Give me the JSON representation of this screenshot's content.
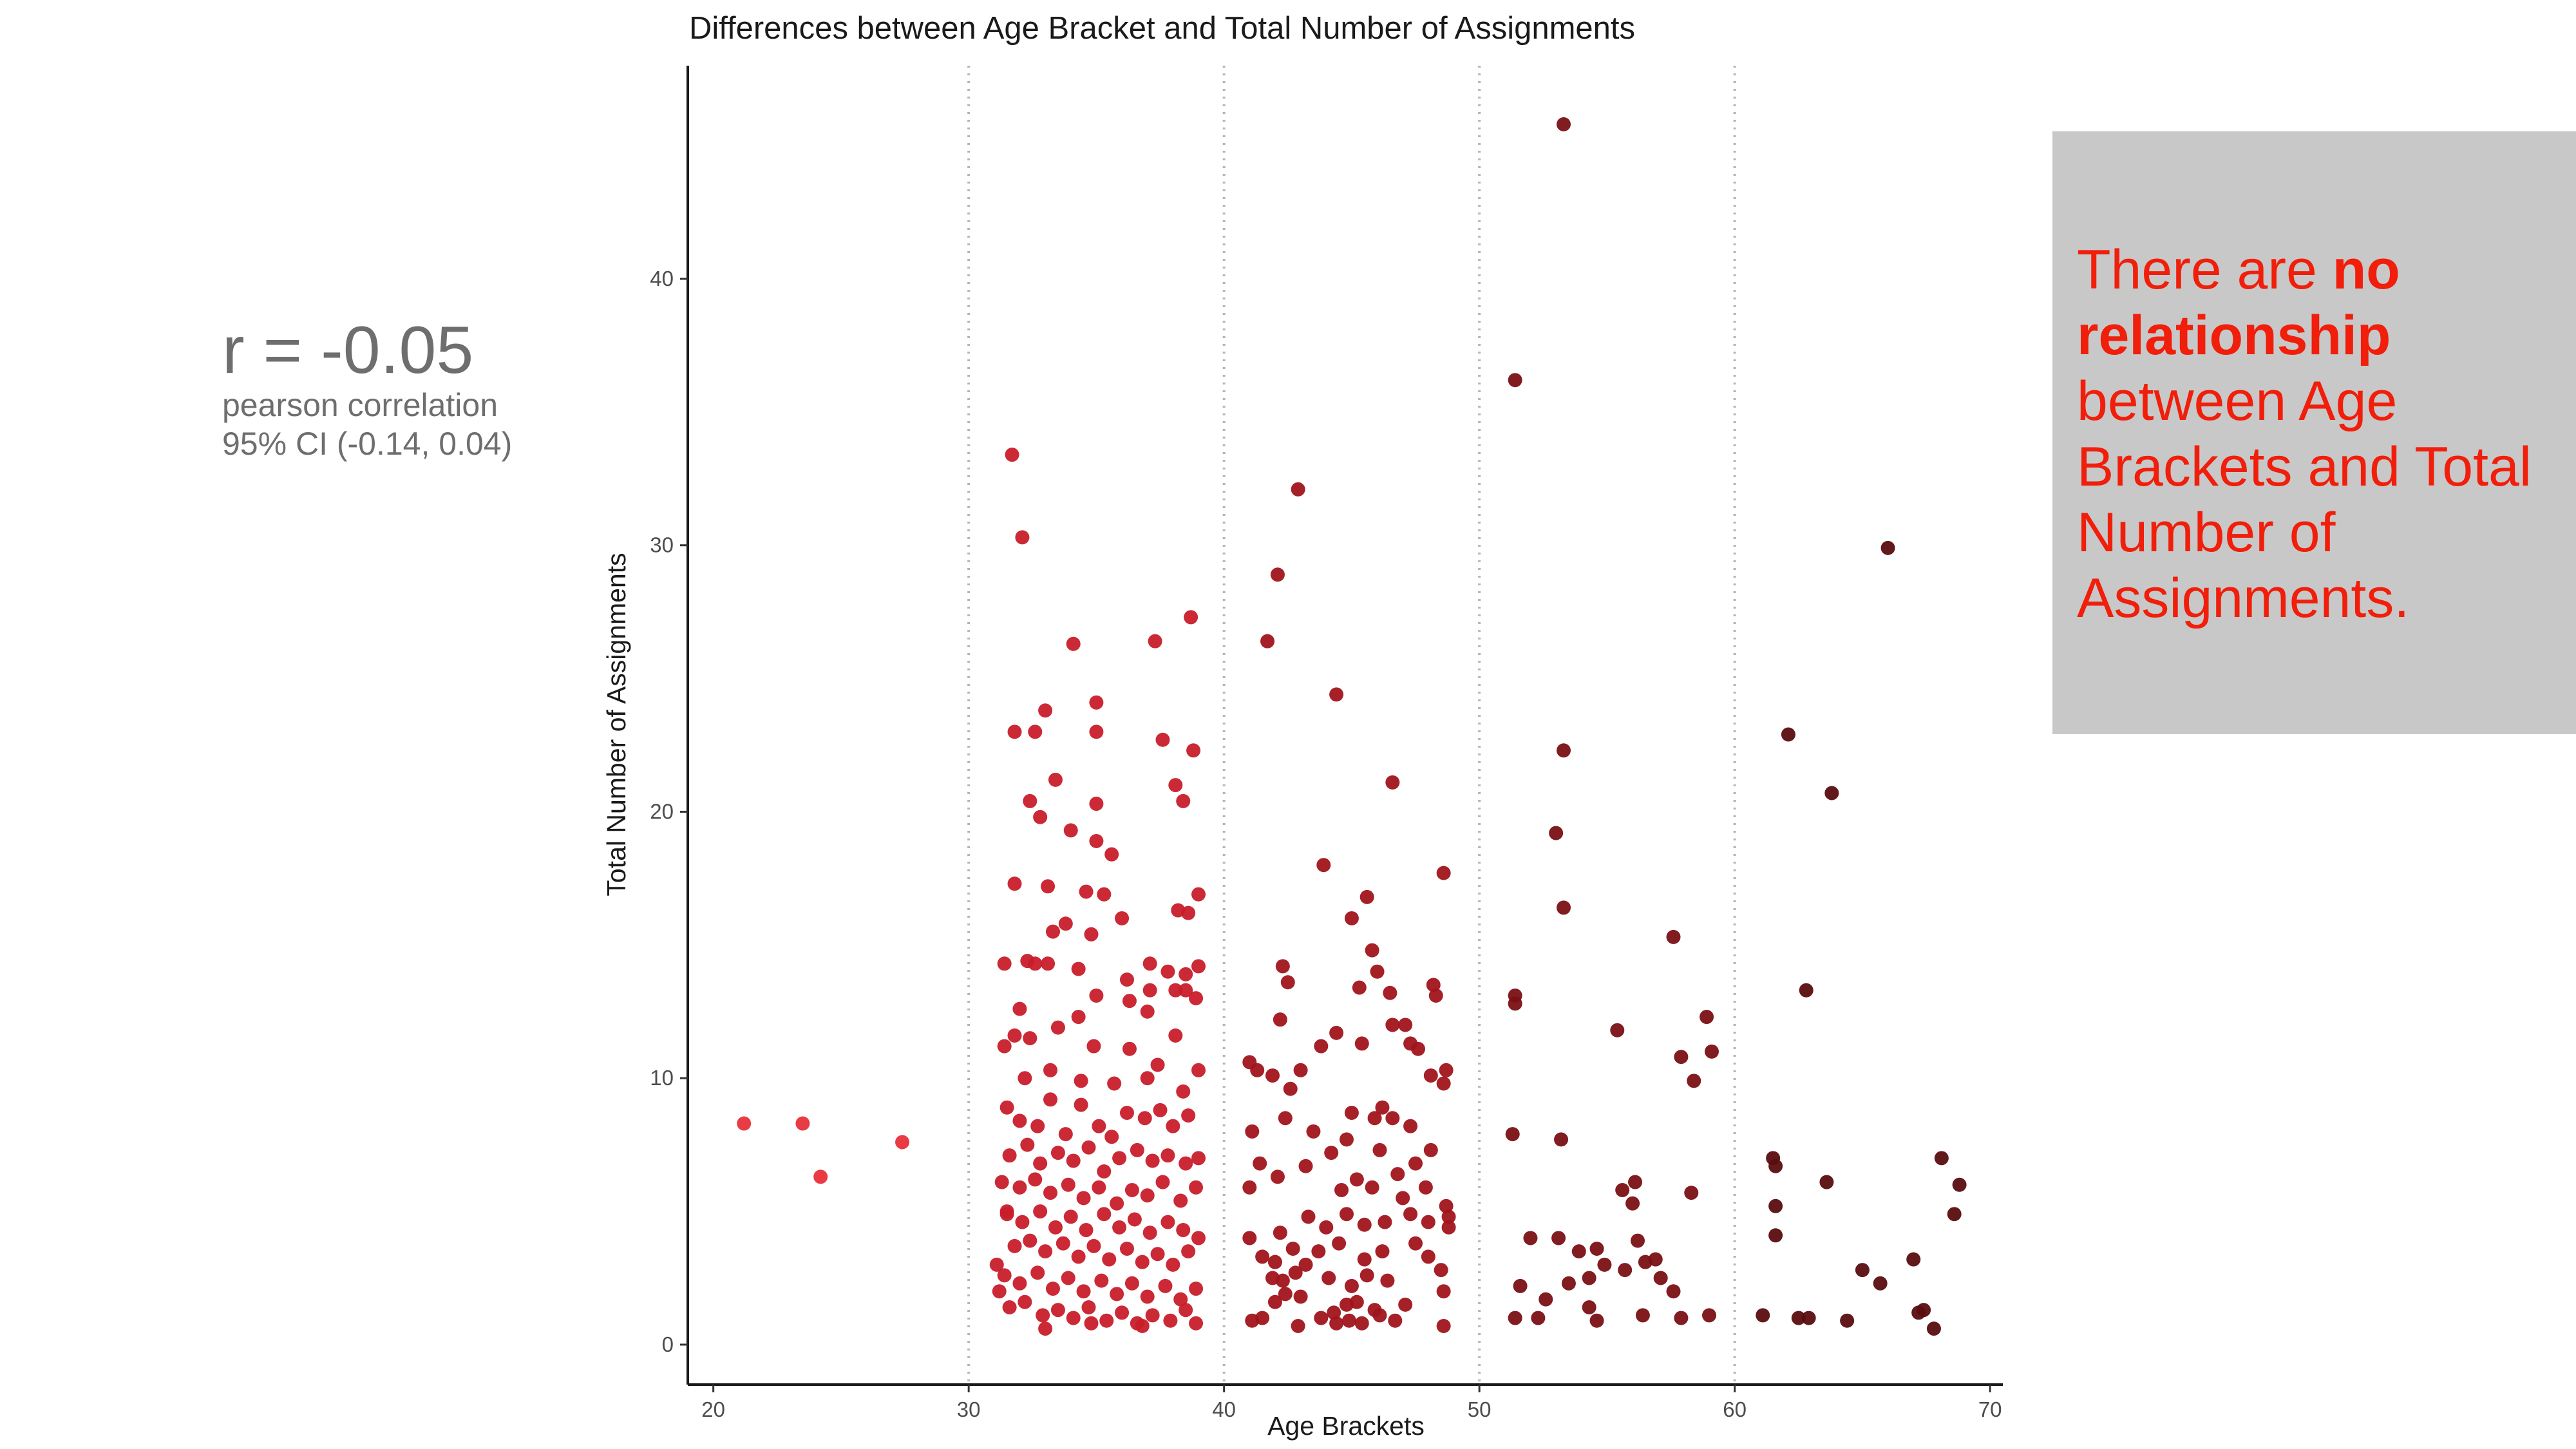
{
  "stats": {
    "r_text": "r = -0.05",
    "method": "pearson correlation",
    "ci": "95% CI (-0.14, 0.04)"
  },
  "note": {
    "part1": "There are ",
    "bold1": "no",
    "bold2": "relationship",
    "rest": "between Age Brackets and Total Number of Assignments."
  },
  "colors": {
    "young": "#e8303a",
    "30s": "#c81e2a",
    "40s": "#a1141c",
    "50s": "#7a1014",
    "60s": "#5a0d0f",
    "note_text": "#f01e0a",
    "note_bg": "#c8c8c8"
  },
  "chart_data": {
    "type": "scatter",
    "title": "Differences between Age Bracket and Total Number of Assignments",
    "xlabel": "Age Brackets",
    "ylabel": "Total Number of Assignments",
    "xlim": [
      19,
      70.5
    ],
    "ylim": [
      -1.5,
      48
    ],
    "xticks": [
      20,
      30,
      40,
      50,
      60,
      70
    ],
    "yticks": [
      0,
      10,
      20,
      30,
      40
    ],
    "bracket_lines": [
      30,
      40,
      50,
      60
    ],
    "grid": false,
    "points": [
      [
        21.2,
        8.3
      ],
      [
        23.5,
        8.3
      ],
      [
        24.2,
        6.3
      ],
      [
        27.4,
        7.6
      ],
      [
        31.7,
        33.4
      ],
      [
        32.1,
        30.3
      ],
      [
        31.8,
        23.0
      ],
      [
        32.6,
        23.0
      ],
      [
        33.0,
        23.8
      ],
      [
        34.1,
        26.3
      ],
      [
        33.4,
        21.2
      ],
      [
        32.4,
        20.4
      ],
      [
        32.8,
        19.8
      ],
      [
        35.0,
        24.1
      ],
      [
        35.0,
        23.0
      ],
      [
        35.0,
        20.3
      ],
      [
        35.0,
        18.9
      ],
      [
        35.6,
        18.4
      ],
      [
        34.0,
        19.3
      ],
      [
        31.8,
        17.3
      ],
      [
        33.1,
        17.2
      ],
      [
        34.6,
        17.0
      ],
      [
        35.3,
        16.9
      ],
      [
        33.8,
        15.8
      ],
      [
        34.8,
        15.4
      ],
      [
        33.3,
        15.5
      ],
      [
        36.0,
        16.0
      ],
      [
        31.4,
        14.3
      ],
      [
        32.3,
        14.4
      ],
      [
        32.6,
        14.3
      ],
      [
        33.1,
        14.3
      ],
      [
        34.3,
        14.1
      ],
      [
        37.3,
        26.4
      ],
      [
        38.7,
        27.3
      ],
      [
        37.6,
        22.7
      ],
      [
        38.8,
        22.3
      ],
      [
        38.1,
        21.0
      ],
      [
        38.4,
        20.4
      ],
      [
        36.2,
        13.7
      ],
      [
        36.3,
        12.9
      ],
      [
        37.1,
        14.3
      ],
      [
        37.8,
        14.0
      ],
      [
        38.5,
        13.9
      ],
      [
        39.0,
        16.9
      ],
      [
        38.2,
        16.3
      ],
      [
        38.6,
        16.2
      ],
      [
        39.0,
        14.2
      ],
      [
        37.1,
        13.3
      ],
      [
        38.1,
        13.3
      ],
      [
        38.5,
        13.3
      ],
      [
        38.9,
        13.0
      ],
      [
        32.0,
        12.6
      ],
      [
        31.8,
        11.6
      ],
      [
        32.4,
        11.5
      ],
      [
        33.5,
        11.9
      ],
      [
        35.0,
        13.1
      ],
      [
        34.3,
        12.3
      ],
      [
        34.9,
        11.2
      ],
      [
        36.3,
        11.1
      ],
      [
        37.0,
        12.5
      ],
      [
        37.4,
        10.5
      ],
      [
        38.1,
        11.6
      ],
      [
        39.0,
        10.3
      ],
      [
        31.4,
        11.2
      ],
      [
        32.2,
        10.0
      ],
      [
        33.2,
        10.3
      ],
      [
        34.4,
        9.9
      ],
      [
        35.7,
        9.8
      ],
      [
        37.0,
        10.0
      ],
      [
        38.4,
        9.5
      ],
      [
        31.5,
        8.9
      ],
      [
        32.0,
        8.4
      ],
      [
        32.7,
        8.2
      ],
      [
        33.2,
        9.2
      ],
      [
        33.8,
        7.9
      ],
      [
        34.4,
        9.0
      ],
      [
        35.1,
        8.2
      ],
      [
        35.6,
        7.8
      ],
      [
        36.2,
        8.7
      ],
      [
        36.9,
        8.5
      ],
      [
        37.5,
        8.8
      ],
      [
        38.0,
        8.2
      ],
      [
        38.6,
        8.6
      ],
      [
        31.6,
        7.1
      ],
      [
        32.3,
        7.5
      ],
      [
        32.8,
        6.8
      ],
      [
        33.5,
        7.2
      ],
      [
        34.1,
        6.9
      ],
      [
        34.7,
        7.4
      ],
      [
        35.3,
        6.5
      ],
      [
        35.9,
        7.0
      ],
      [
        36.6,
        7.3
      ],
      [
        37.2,
        6.9
      ],
      [
        37.8,
        7.1
      ],
      [
        38.5,
        6.8
      ],
      [
        31.3,
        6.1
      ],
      [
        32.0,
        5.9
      ],
      [
        32.6,
        6.2
      ],
      [
        33.2,
        5.7
      ],
      [
        33.9,
        6.0
      ],
      [
        34.5,
        5.5
      ],
      [
        35.1,
        5.9
      ],
      [
        35.8,
        5.3
      ],
      [
        36.4,
        5.8
      ],
      [
        37.0,
        5.6
      ],
      [
        37.6,
        6.1
      ],
      [
        38.3,
        5.4
      ],
      [
        38.9,
        5.9
      ],
      [
        31.5,
        4.9
      ],
      [
        32.1,
        4.6
      ],
      [
        32.8,
        5.0
      ],
      [
        33.4,
        4.4
      ],
      [
        34.0,
        4.8
      ],
      [
        34.6,
        4.3
      ],
      [
        35.3,
        4.9
      ],
      [
        35.9,
        4.4
      ],
      [
        36.5,
        4.7
      ],
      [
        37.1,
        4.2
      ],
      [
        37.8,
        4.6
      ],
      [
        38.4,
        4.3
      ],
      [
        31.8,
        3.7
      ],
      [
        32.4,
        3.9
      ],
      [
        33.0,
        3.5
      ],
      [
        33.7,
        3.8
      ],
      [
        34.3,
        3.3
      ],
      [
        34.9,
        3.7
      ],
      [
        35.5,
        3.2
      ],
      [
        36.2,
        3.6
      ],
      [
        36.8,
        3.1
      ],
      [
        37.4,
        3.4
      ],
      [
        38.0,
        3.0
      ],
      [
        38.6,
        3.5
      ],
      [
        31.4,
        2.6
      ],
      [
        32.0,
        2.3
      ],
      [
        32.7,
        2.7
      ],
      [
        33.3,
        2.1
      ],
      [
        33.9,
        2.5
      ],
      [
        34.5,
        2.0
      ],
      [
        35.2,
        2.4
      ],
      [
        35.8,
        1.9
      ],
      [
        36.4,
        2.3
      ],
      [
        37.0,
        1.8
      ],
      [
        37.7,
        2.2
      ],
      [
        38.3,
        1.7
      ],
      [
        38.9,
        2.1
      ],
      [
        31.6,
        1.4
      ],
      [
        32.2,
        1.6
      ],
      [
        32.9,
        1.1
      ],
      [
        33.5,
        1.3
      ],
      [
        34.1,
        1.0
      ],
      [
        34.7,
        1.4
      ],
      [
        35.4,
        0.9
      ],
      [
        36.0,
        1.2
      ],
      [
        36.6,
        0.8
      ],
      [
        37.2,
        1.1
      ],
      [
        37.9,
        0.9
      ],
      [
        38.5,
        1.3
      ],
      [
        33.0,
        0.6
      ],
      [
        34.8,
        0.8
      ],
      [
        36.8,
        0.7
      ],
      [
        38.9,
        0.8
      ],
      [
        31.2,
        2.0
      ],
      [
        31.5,
        5.0
      ],
      [
        39.0,
        4.0
      ],
      [
        39.0,
        7.0
      ],
      [
        31.1,
        3.0
      ],
      [
        42.9,
        32.1
      ],
      [
        42.1,
        28.9
      ],
      [
        41.7,
        26.4
      ],
      [
        44.4,
        24.4
      ],
      [
        46.6,
        21.1
      ],
      [
        43.9,
        18.0
      ],
      [
        48.6,
        17.7
      ],
      [
        45.0,
        16.0
      ],
      [
        45.6,
        16.8
      ],
      [
        45.8,
        14.8
      ],
      [
        42.3,
        14.2
      ],
      [
        42.5,
        13.6
      ],
      [
        46.0,
        14.0
      ],
      [
        45.3,
        13.4
      ],
      [
        46.5,
        13.2
      ],
      [
        48.2,
        13.5
      ],
      [
        48.3,
        13.1
      ],
      [
        42.2,
        12.2
      ],
      [
        43.8,
        11.2
      ],
      [
        44.4,
        11.7
      ],
      [
        45.4,
        11.3
      ],
      [
        46.6,
        12.0
      ],
      [
        47.1,
        12.0
      ],
      [
        47.3,
        11.3
      ],
      [
        41.0,
        10.6
      ],
      [
        41.3,
        10.3
      ],
      [
        41.9,
        10.1
      ],
      [
        42.6,
        9.6
      ],
      [
        43.0,
        10.3
      ],
      [
        47.6,
        11.1
      ],
      [
        48.1,
        10.1
      ],
      [
        48.6,
        9.8
      ],
      [
        48.7,
        10.3
      ],
      [
        42.4,
        8.5
      ],
      [
        43.5,
        8.0
      ],
      [
        45.0,
        8.7
      ],
      [
        45.9,
        8.5
      ],
      [
        46.2,
        8.9
      ],
      [
        46.6,
        8.5
      ],
      [
        47.3,
        8.2
      ],
      [
        41.1,
        8.0
      ],
      [
        44.2,
        7.2
      ],
      [
        44.8,
        7.7
      ],
      [
        46.1,
        7.3
      ],
      [
        47.5,
        6.8
      ],
      [
        48.1,
        7.3
      ],
      [
        41.4,
        6.8
      ],
      [
        42.1,
        6.3
      ],
      [
        43.2,
        6.7
      ],
      [
        44.6,
        5.8
      ],
      [
        45.2,
        6.2
      ],
      [
        45.8,
        5.9
      ],
      [
        46.8,
        6.4
      ],
      [
        47.0,
        5.5
      ],
      [
        47.9,
        5.9
      ],
      [
        48.7,
        5.2
      ],
      [
        48.8,
        4.8
      ],
      [
        41.0,
        5.9
      ],
      [
        42.2,
        4.2
      ],
      [
        43.3,
        4.8
      ],
      [
        44.0,
        4.4
      ],
      [
        44.8,
        4.9
      ],
      [
        45.5,
        4.5
      ],
      [
        46.3,
        4.6
      ],
      [
        47.3,
        4.9
      ],
      [
        48.0,
        4.6
      ],
      [
        48.8,
        4.4
      ],
      [
        41.0,
        4.0
      ],
      [
        41.5,
        3.3
      ],
      [
        42.0,
        3.1
      ],
      [
        42.7,
        3.6
      ],
      [
        43.2,
        3.0
      ],
      [
        43.7,
        3.5
      ],
      [
        44.5,
        3.8
      ],
      [
        45.5,
        3.2
      ],
      [
        46.2,
        3.5
      ],
      [
        47.5,
        3.8
      ],
      [
        48.0,
        3.3
      ],
      [
        41.9,
        2.5
      ],
      [
        42.3,
        2.4
      ],
      [
        42.8,
        2.7
      ],
      [
        44.1,
        2.5
      ],
      [
        45.0,
        2.2
      ],
      [
        45.6,
        2.6
      ],
      [
        46.4,
        2.4
      ],
      [
        48.5,
        2.8
      ],
      [
        42.0,
        1.6
      ],
      [
        42.4,
        1.9
      ],
      [
        43.0,
        1.8
      ],
      [
        44.3,
        1.2
      ],
      [
        45.2,
        1.6
      ],
      [
        45.9,
        1.3
      ],
      [
        47.1,
        1.5
      ],
      [
        48.6,
        2.0
      ],
      [
        41.1,
        0.9
      ],
      [
        41.5,
        1.0
      ],
      [
        42.9,
        0.7
      ],
      [
        43.8,
        1.0
      ],
      [
        44.4,
        0.8
      ],
      [
        44.9,
        0.9
      ],
      [
        45.4,
        0.8
      ],
      [
        46.1,
        1.1
      ],
      [
        46.7,
        0.9
      ],
      [
        48.6,
        0.7
      ],
      [
        44.8,
        1.5
      ],
      [
        53.3,
        45.8
      ],
      [
        51.4,
        36.2
      ],
      [
        53.3,
        22.3
      ],
      [
        53.0,
        19.2
      ],
      [
        53.3,
        16.4
      ],
      [
        51.4,
        13.1
      ],
      [
        51.4,
        12.8
      ],
      [
        51.3,
        7.9
      ],
      [
        53.2,
        7.7
      ],
      [
        55.4,
        11.8
      ],
      [
        55.6,
        5.8
      ],
      [
        56.1,
        6.1
      ],
      [
        56.0,
        5.3
      ],
      [
        56.2,
        3.9
      ],
      [
        56.5,
        3.1
      ],
      [
        55.7,
        2.8
      ],
      [
        54.9,
        3.0
      ],
      [
        54.6,
        3.6
      ],
      [
        53.9,
        3.5
      ],
      [
        53.1,
        4.0
      ],
      [
        52.0,
        4.0
      ],
      [
        53.5,
        2.3
      ],
      [
        54.3,
        2.5
      ],
      [
        51.6,
        2.2
      ],
      [
        52.6,
        1.7
      ],
      [
        54.3,
        1.4
      ],
      [
        54.6,
        0.9
      ],
      [
        51.4,
        1.0
      ],
      [
        52.3,
        1.0
      ],
      [
        56.4,
        1.1
      ],
      [
        57.6,
        15.3
      ],
      [
        57.9,
        10.8
      ],
      [
        58.4,
        9.9
      ],
      [
        58.9,
        12.3
      ],
      [
        59.1,
        11.0
      ],
      [
        57.1,
        2.5
      ],
      [
        57.6,
        2.0
      ],
      [
        58.3,
        5.7
      ],
      [
        57.9,
        1.0
      ],
      [
        59.0,
        1.1
      ],
      [
        56.9,
        3.2
      ],
      [
        62.1,
        22.9
      ],
      [
        63.8,
        20.7
      ],
      [
        66.0,
        29.9
      ],
      [
        62.8,
        13.3
      ],
      [
        61.5,
        7.0
      ],
      [
        61.6,
        6.7
      ],
      [
        63.6,
        6.1
      ],
      [
        61.6,
        5.2
      ],
      [
        61.6,
        4.1
      ],
      [
        65.0,
        2.8
      ],
      [
        65.7,
        2.3
      ],
      [
        67.0,
        3.2
      ],
      [
        68.1,
        7.0
      ],
      [
        68.6,
        4.9
      ],
      [
        68.8,
        6.0
      ],
      [
        61.1,
        1.1
      ],
      [
        62.5,
        1.0
      ],
      [
        62.9,
        1.0
      ],
      [
        64.4,
        0.9
      ],
      [
        67.2,
        1.2
      ],
      [
        67.4,
        1.3
      ],
      [
        67.8,
        0.6
      ]
    ]
  }
}
